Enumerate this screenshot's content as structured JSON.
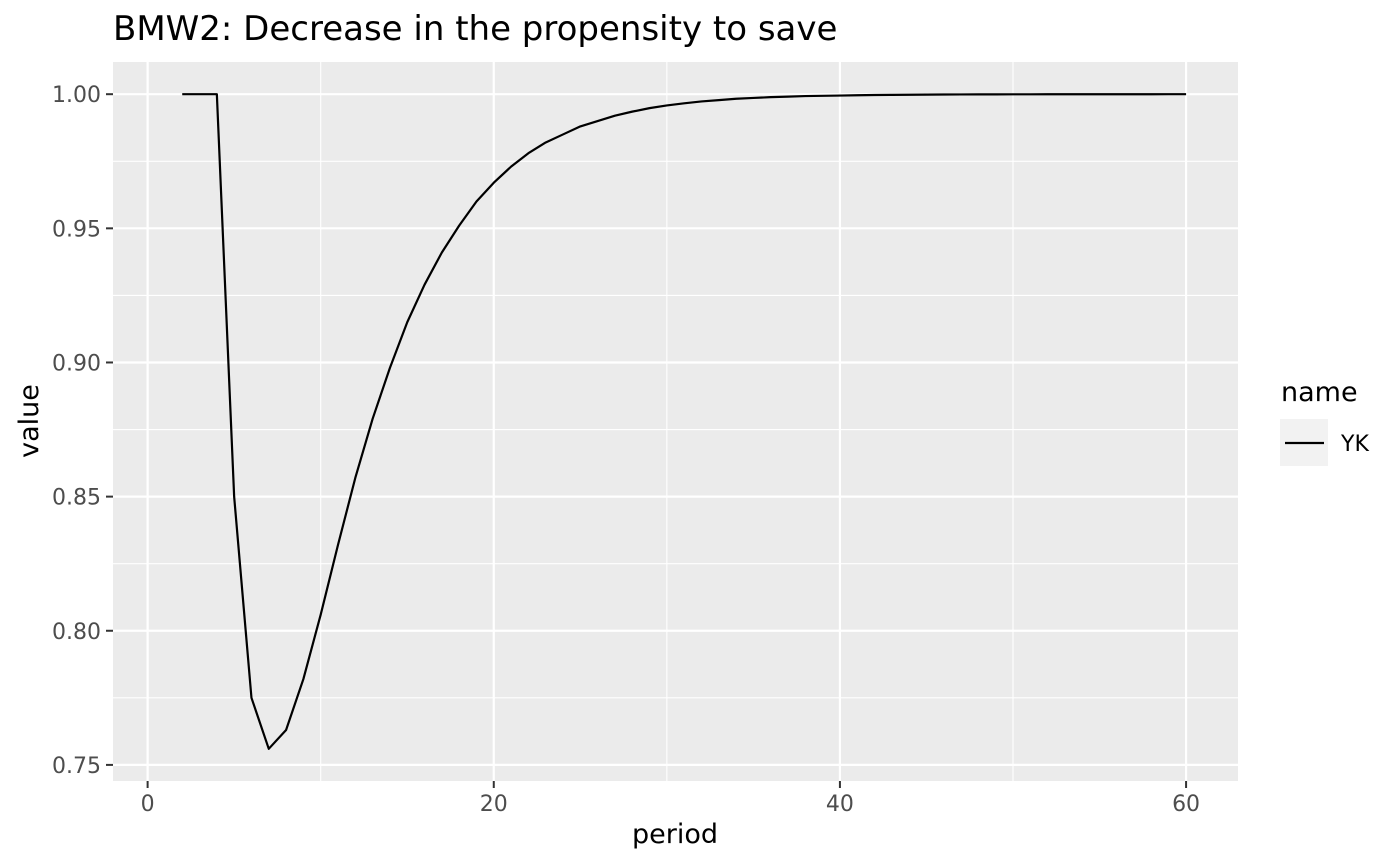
{
  "chart_data": {
    "type": "line",
    "title": "BMW2: Decrease in the propensity to save",
    "xlabel": "period",
    "ylabel": "value",
    "xlim": [
      -2,
      63
    ],
    "ylim": [
      0.744,
      1.012
    ],
    "x_ticks": [
      0,
      20,
      40,
      60
    ],
    "x_tick_labels": [
      "0",
      "20",
      "40",
      "60"
    ],
    "y_ticks": [
      0.75,
      0.8,
      0.85,
      0.9,
      0.95,
      1.0
    ],
    "y_tick_labels": [
      "0.75",
      "0.80",
      "0.85",
      "0.90",
      "0.95",
      "1.00"
    ],
    "grid": true,
    "legend": {
      "title": "name",
      "position": "right",
      "entries": [
        "YK"
      ]
    },
    "panel_color": "#ebebeb",
    "grid_color": "#ffffff",
    "series": [
      {
        "name": "YK",
        "color": "#000000",
        "x": [
          2,
          3,
          4,
          5,
          6,
          7,
          8,
          9,
          10,
          11,
          12,
          13,
          14,
          15,
          16,
          17,
          18,
          19,
          20,
          21,
          22,
          23,
          24,
          25,
          26,
          27,
          28,
          29,
          30,
          31,
          32,
          33,
          34,
          35,
          36,
          37,
          38,
          39,
          40,
          41,
          42,
          43,
          44,
          45,
          46,
          47,
          48,
          49,
          50,
          51,
          52,
          53,
          54,
          55,
          56,
          57,
          58,
          59,
          60
        ],
        "values": [
          1.0,
          1.0,
          1.0,
          0.85,
          0.775,
          0.756,
          0.763,
          0.782,
          0.806,
          0.832,
          0.857,
          0.879,
          0.898,
          0.915,
          0.929,
          0.941,
          0.951,
          0.96,
          0.967,
          0.973,
          0.978,
          0.982,
          0.985,
          0.988,
          0.99,
          0.992,
          0.9935,
          0.9948,
          0.9958,
          0.9966,
          0.9973,
          0.9978,
          0.9983,
          0.9986,
          0.9989,
          0.9991,
          0.9993,
          0.9994,
          0.9995,
          0.9996,
          0.9997,
          0.99975,
          0.9998,
          0.99985,
          0.99988,
          0.9999,
          0.99992,
          0.99994,
          0.99995,
          0.99996,
          0.99997,
          0.99997,
          0.99998,
          0.99998,
          0.99999,
          0.99999,
          0.99999,
          1.0,
          1.0
        ]
      }
    ]
  }
}
